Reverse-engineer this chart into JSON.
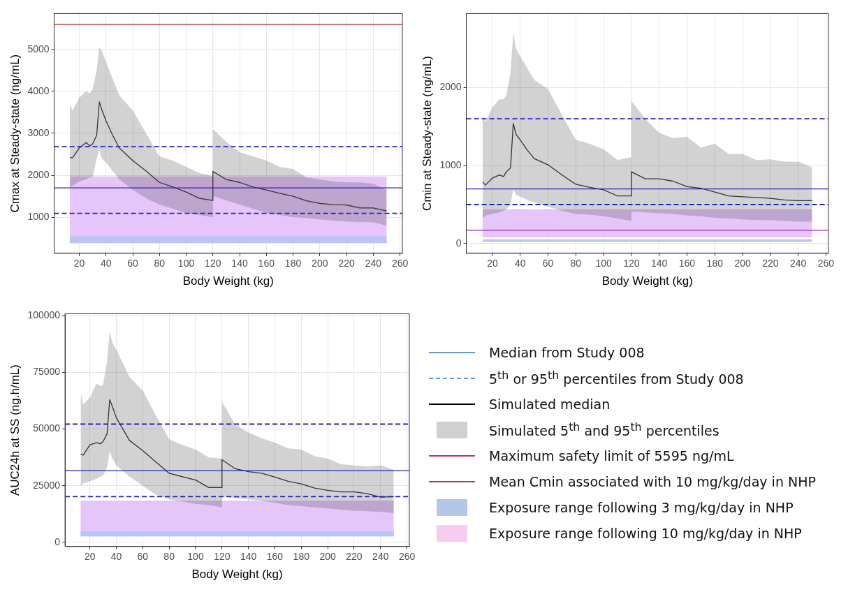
{
  "chart_data": [
    {
      "type": "line",
      "xlabel": "Body Weight (kg)",
      "ylabel": "Cmax at Steady-state (ng/mL)",
      "x": [
        13,
        15,
        20,
        25,
        28,
        30,
        33,
        35,
        37,
        40,
        45,
        50,
        60,
        70,
        80,
        90,
        100,
        110,
        120,
        120,
        130,
        140,
        150,
        160,
        170,
        180,
        190,
        200,
        210,
        220,
        230,
        240,
        250
      ],
      "xlim": [
        1.2,
        261.8
      ],
      "ylim": [
        140,
        5855
      ],
      "xticks": [
        20,
        40,
        60,
        80,
        100,
        120,
        140,
        160,
        180,
        200,
        220,
        240,
        260
      ],
      "yticks": [
        1000,
        2000,
        3000,
        4000,
        5000
      ],
      "grid": true,
      "series": [
        {
          "color": "#333333",
          "values": [
            2420,
            2420,
            2650,
            2780,
            2700,
            2750,
            2950,
            3750,
            3550,
            3300,
            2950,
            2650,
            2350,
            2100,
            1830,
            1720,
            1600,
            1450,
            1400,
            2090,
            1900,
            1830,
            1720,
            1650,
            1570,
            1500,
            1390,
            1330,
            1300,
            1290,
            1220,
            1220,
            1150
          ],
          "upper": [
            3680,
            3550,
            3850,
            4000,
            3950,
            4050,
            4500,
            5050,
            4950,
            4700,
            4300,
            3900,
            3550,
            3000,
            2450,
            2350,
            2200,
            2050,
            1980,
            3100,
            2800,
            2550,
            2450,
            2350,
            2200,
            2150,
            1950,
            1900,
            1850,
            1830,
            1830,
            1800,
            1650
          ],
          "lower": [
            1700,
            1750,
            1850,
            1900,
            1950,
            1950,
            2400,
            2600,
            2400,
            2300,
            2100,
            1900,
            1650,
            1450,
            1300,
            1200,
            1100,
            1050,
            1000,
            1500,
            1400,
            1300,
            1200,
            1100,
            1050,
            1000,
            980,
            950,
            920,
            900,
            880,
            880,
            800
          ]
        }
      ],
      "bands": [
        {
          "axis": "y",
          "from": 384,
          "to": 1970,
          "color": "#e6c6fa"
        },
        {
          "axis": "y",
          "from": 384,
          "to": 550,
          "color": "#bcc4f6"
        }
      ],
      "ref_lines": [
        {
          "axis": "y",
          "value": 5595,
          "color": "#cc4444"
        },
        {
          "axis": "y",
          "value": 2680,
          "color": "#2020c8",
          "line_style": "dashed"
        },
        {
          "axis": "y",
          "value": 1700,
          "color": "#2020c8"
        },
        {
          "axis": "y",
          "value": 1090,
          "color": "#2020c8",
          "line_style": "dashed"
        }
      ]
    },
    {
      "type": "line",
      "xlabel": "Body Weight (kg)",
      "ylabel": "Cmin at Steady-state (ng/mL)",
      "x": [
        13,
        15,
        20,
        25,
        28,
        30,
        33,
        35,
        37,
        40,
        45,
        50,
        60,
        70,
        80,
        90,
        100,
        110,
        120,
        120,
        130,
        140,
        150,
        160,
        170,
        180,
        190,
        200,
        210,
        220,
        230,
        240,
        250
      ],
      "xlim": [
        1.2,
        261.8
      ],
      "ylim": [
        -125,
        2950
      ],
      "xticks": [
        20,
        40,
        60,
        80,
        100,
        120,
        140,
        160,
        180,
        200,
        220,
        240,
        260
      ],
      "yticks": [
        0,
        1000,
        2000
      ],
      "grid": true,
      "series": [
        {
          "color": "#333333",
          "values": [
            790,
            750,
            840,
            880,
            860,
            920,
            970,
            1540,
            1400,
            1330,
            1200,
            1090,
            1010,
            880,
            760,
            720,
            690,
            610,
            610,
            920,
            830,
            830,
            800,
            730,
            710,
            660,
            610,
            600,
            590,
            580,
            560,
            550,
            550
          ],
          "upper": [
            1650,
            1560,
            1750,
            1850,
            1850,
            1900,
            2200,
            2700,
            2500,
            2400,
            2250,
            2100,
            1980,
            1650,
            1330,
            1280,
            1210,
            1070,
            1110,
            1830,
            1600,
            1420,
            1350,
            1370,
            1230,
            1280,
            1150,
            1150,
            1070,
            1080,
            1050,
            1050,
            980
          ],
          "lower": [
            320,
            360,
            380,
            400,
            420,
            440,
            500,
            700,
            620,
            600,
            560,
            530,
            470,
            420,
            380,
            370,
            350,
            320,
            290,
            410,
            400,
            390,
            380,
            360,
            350,
            330,
            320,
            310,
            300,
            300,
            290,
            280,
            280
          ]
        }
      ],
      "bands": [
        {
          "axis": "y",
          "from": 80,
          "to": 440,
          "color": "#e6c6fa"
        },
        {
          "axis": "y",
          "from": 20,
          "to": 55,
          "color": "#bcc4f6"
        }
      ],
      "ref_lines": [
        {
          "axis": "y",
          "value": 1600,
          "color": "#2020c8",
          "line_style": "dashed"
        },
        {
          "axis": "y",
          "value": 700,
          "color": "#2020c8"
        },
        {
          "axis": "y",
          "value": 500,
          "color": "#2020c8",
          "line_style": "dashed"
        },
        {
          "axis": "y",
          "value": 170,
          "color": "#a020d0"
        }
      ]
    },
    {
      "type": "line",
      "xlabel": "Body Weight (kg)",
      "ylabel": "AUC24h at SS (ng.h/mL)",
      "x": [
        13,
        15,
        20,
        25,
        28,
        30,
        33,
        35,
        37,
        40,
        45,
        50,
        60,
        70,
        80,
        90,
        100,
        110,
        120,
        120,
        130,
        140,
        150,
        160,
        170,
        180,
        190,
        200,
        210,
        220,
        230,
        240,
        250
      ],
      "xlim": [
        1.2,
        261.8
      ],
      "ylim": [
        -1800,
        100900
      ],
      "xticks": [
        20,
        40,
        60,
        80,
        100,
        120,
        140,
        160,
        180,
        200,
        220,
        240,
        260
      ],
      "yticks": [
        0,
        25000,
        50000,
        75000,
        100000
      ],
      "grid": true,
      "series": [
        {
          "color": "#333333",
          "values": [
            39000,
            38500,
            43000,
            44000,
            43500,
            44500,
            48000,
            63000,
            60000,
            55000,
            50000,
            45000,
            40500,
            35500,
            30500,
            29000,
            27500,
            24200,
            24200,
            36500,
            32500,
            31200,
            30500,
            28800,
            27000,
            25800,
            24000,
            23000,
            22300,
            22300,
            21500,
            20000,
            20200
          ],
          "upper": [
            66000,
            61000,
            64000,
            70000,
            69000,
            69500,
            80000,
            93000,
            88000,
            85000,
            79000,
            73000,
            67000,
            56000,
            45500,
            43000,
            41000,
            37500,
            37000,
            62000,
            52000,
            48500,
            46000,
            44000,
            41500,
            41000,
            38000,
            37000,
            34500,
            34000,
            33500,
            34000,
            32000
          ],
          "lower": [
            25000,
            26000,
            27000,
            28000,
            29000,
            29500,
            33000,
            40000,
            37000,
            34000,
            31500,
            29000,
            25000,
            21000,
            19000,
            18000,
            17000,
            16500,
            15500,
            20500,
            19500,
            19000,
            18500,
            17500,
            16500,
            16000,
            15500,
            15000,
            14500,
            14000,
            13800,
            13500,
            13000
          ]
        }
      ],
      "bands": [
        {
          "axis": "y",
          "from": 2700,
          "to": 18500,
          "color": "#e6c6fa"
        },
        {
          "axis": "y",
          "from": 2700,
          "to": 5000,
          "color": "#bcc4f6"
        }
      ],
      "ref_lines": [
        {
          "axis": "y",
          "value": 52200,
          "color": "#2020c8",
          "line_style": "dashed"
        },
        {
          "axis": "y",
          "value": 31600,
          "color": "#2020c8"
        },
        {
          "axis": "y",
          "value": 20200,
          "color": "#2020c8",
          "line_style": "dashed"
        }
      ]
    },
    {
      "type": "other",
      "annotations": [
        "Median from Study 008",
        "5$^{th}$ or 95$^{th}$ percentiles from Study 008",
        "Simulated median",
        "Simulated 5$^{th}$ and 95$^{th}$ percentiles",
        "Maximum safety limit of 5595 ng/mL",
        "Mean Cmin associated with 10 mg/kg/day in NHP",
        "Exposure range following 3 mg/kg/day in NHP",
        "Exposure range following 10 mg/kg/day in NHP"
      ],
      "colors": [
        "#5b9bd5",
        "#5b9bd5",
        "#000000",
        "#d0d0d0",
        "#c0365a",
        "#c0365a",
        "#b4c7e7",
        "#f8cbf0"
      ]
    }
  ]
}
